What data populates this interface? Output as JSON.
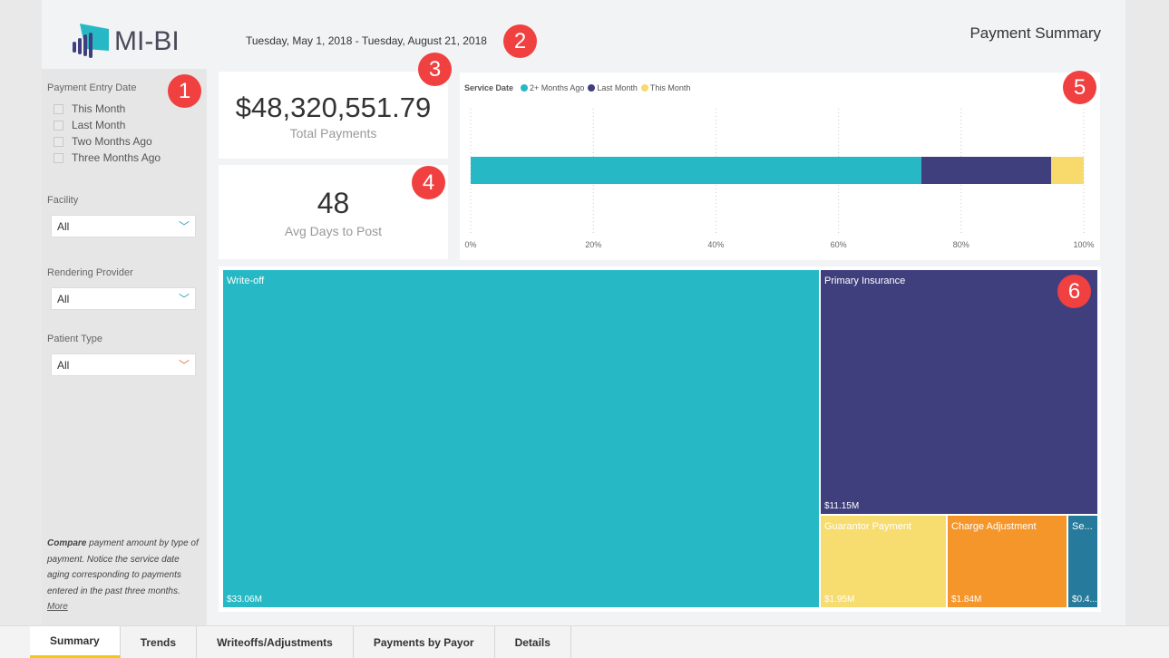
{
  "header": {
    "logo_text": "MI-BI",
    "date_range": "Tuesday, May 1, 2018 - Tuesday, August 21, 2018",
    "title": "Payment Summary"
  },
  "slicers": {
    "payment_entry_date": {
      "label": "Payment Entry Date",
      "options": [
        "This Month",
        "Last Month",
        "Two Months Ago",
        "Three Months Ago"
      ]
    },
    "facility": {
      "label": "Facility",
      "value": "All"
    },
    "rendering_provider": {
      "label": "Rendering Provider",
      "value": "All"
    },
    "patient_type": {
      "label": "Patient Type",
      "value": "All"
    },
    "note": {
      "bold": "Compare",
      "text": " payment amount by type of payment. Notice the service date aging corresponding to payments entered in the past three months.",
      "link": "More"
    }
  },
  "cards": {
    "total_payments": {
      "value": "$48,320,551.79",
      "label": "Total Payments"
    },
    "avg_days": {
      "value": "48",
      "label": "Avg Days to Post"
    }
  },
  "badges": [
    "1",
    "2",
    "3",
    "4",
    "5",
    "6"
  ],
  "chart_data": {
    "type": "bar",
    "orientation": "horizontal-stacked-100",
    "legend_title": "Service Date",
    "legend_position": "top-left",
    "series": [
      {
        "name": "2+ Months Ago",
        "value": 73.5,
        "color": "#26b9c5"
      },
      {
        "name": "Last Month",
        "value": 21.2,
        "color": "#403f7e"
      },
      {
        "name": "This Month",
        "value": 5.3,
        "color": "#f7d96c"
      }
    ],
    "xticks": [
      "0%",
      "20%",
      "40%",
      "60%",
      "80%",
      "100%"
    ],
    "xlim": [
      0,
      100
    ],
    "grid": true
  },
  "treemap": [
    {
      "name": "Write-off",
      "value": "$33.06M",
      "color": "#26b9c5"
    },
    {
      "name": "Primary Insurance",
      "value": "$11.15M",
      "color": "#403f7e"
    },
    {
      "name": "Guarantor Payment",
      "value": "$1.95M",
      "color": "#f7dc6f"
    },
    {
      "name": "Charge Adjustment",
      "value": "$1.84M",
      "color": "#f5962b"
    },
    {
      "name": "Se...",
      "value": "$0.4...",
      "color": "#267a9c"
    }
  ],
  "tabs": [
    "Summary",
    "Trends",
    "Writeoffs/Adjustments",
    "Payments by Payor",
    "Details"
  ]
}
